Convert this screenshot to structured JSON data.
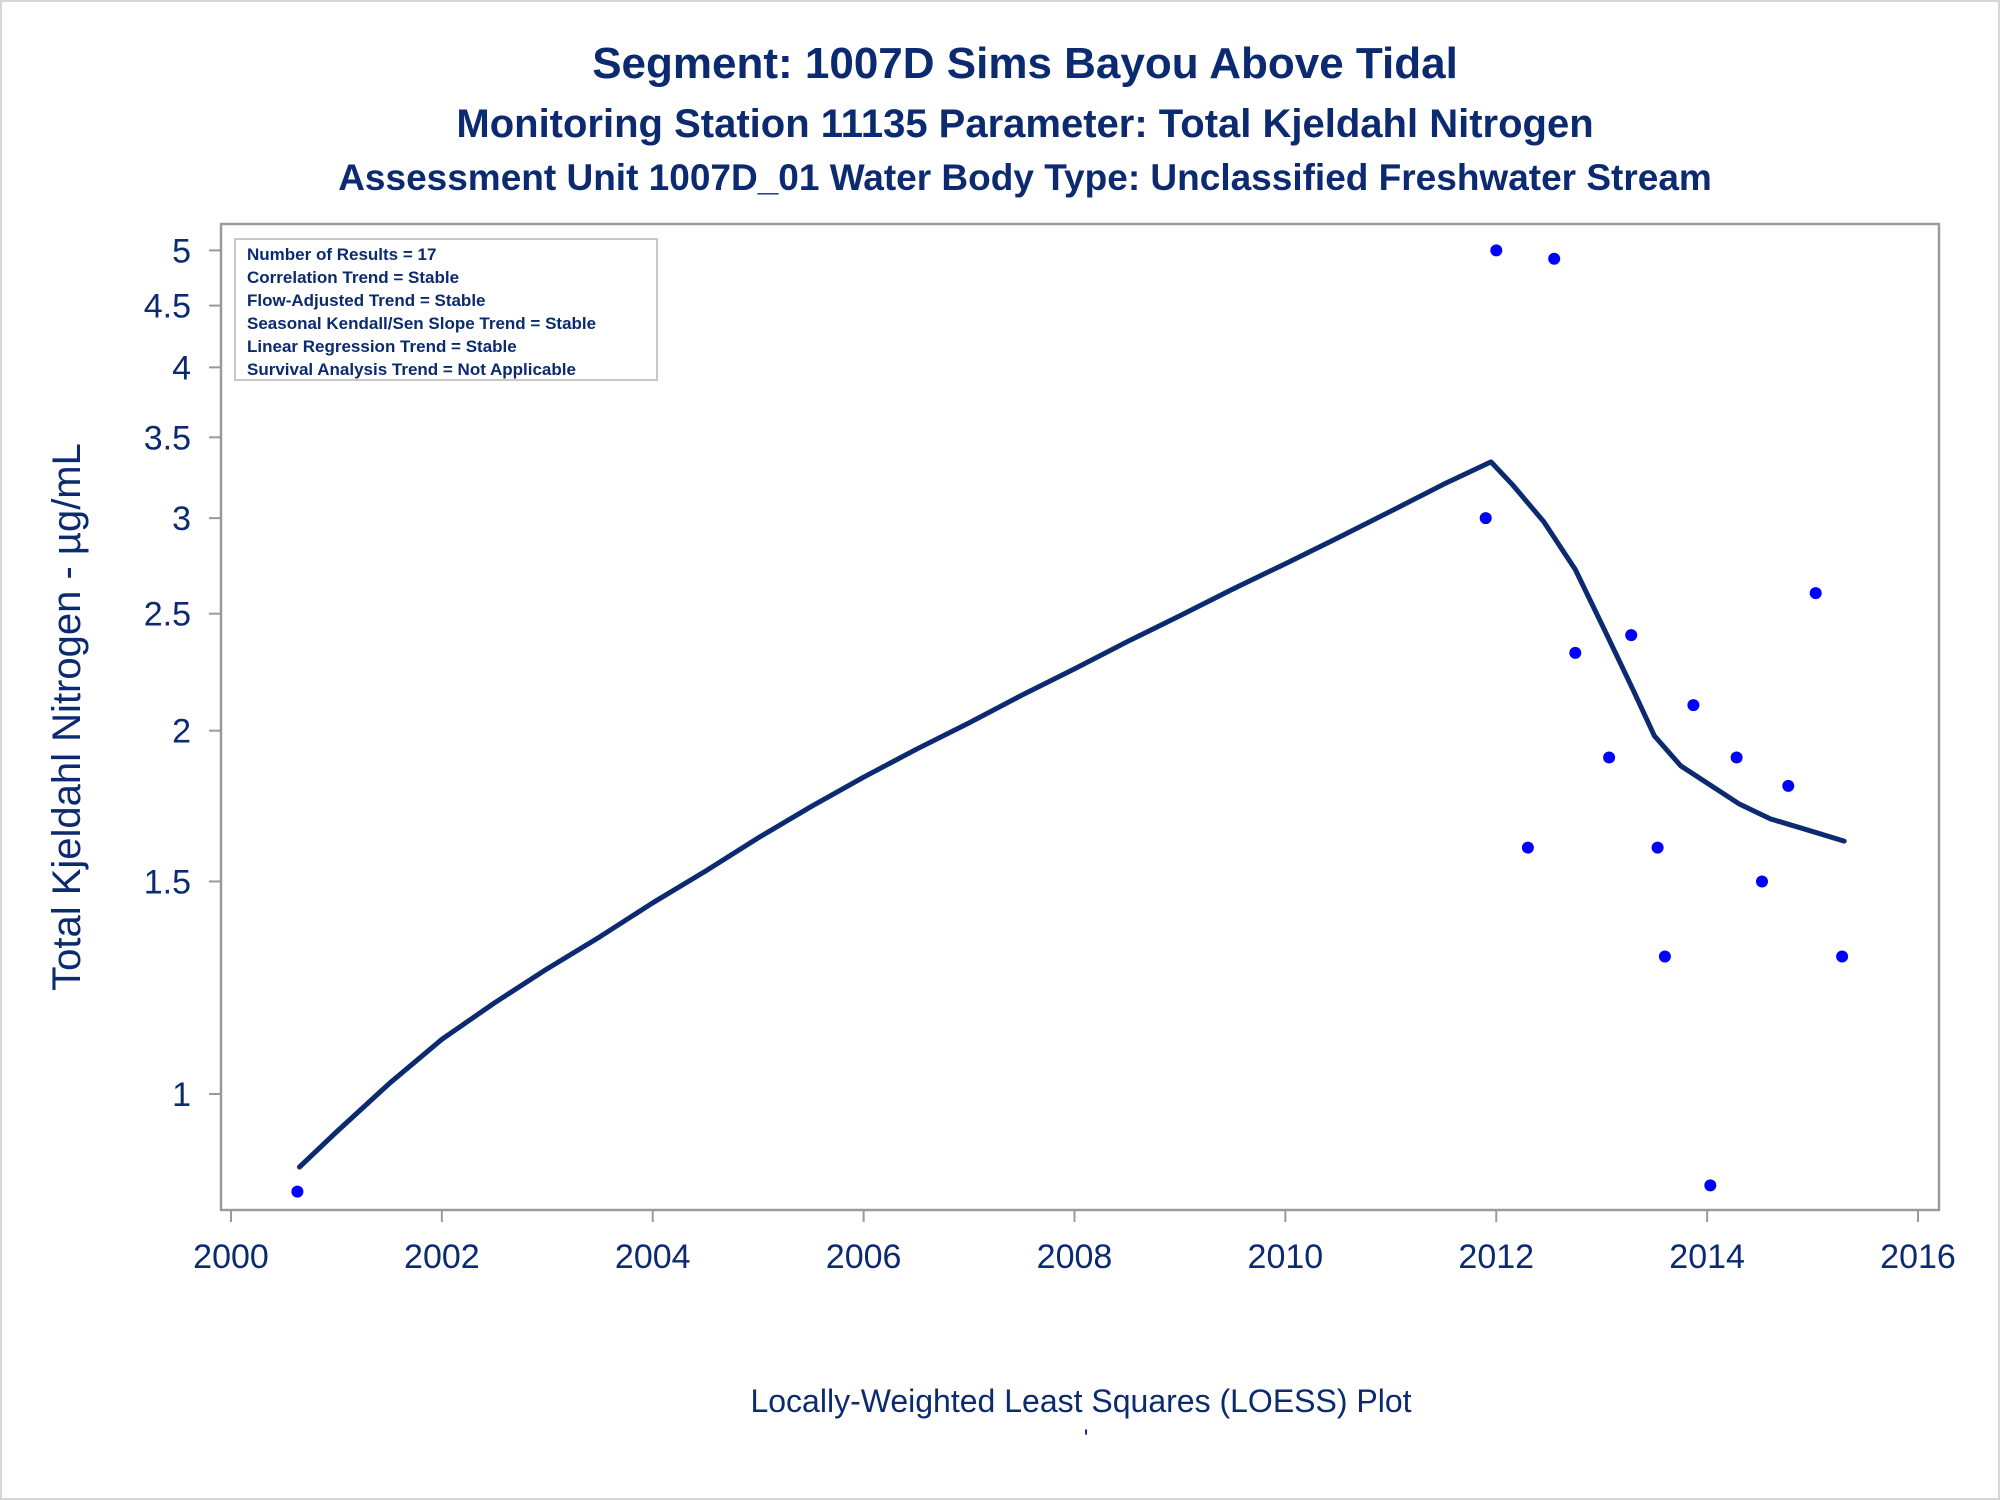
{
  "titles": {
    "line1": "Segment: 1007D  Sims Bayou Above Tidal",
    "line2": "Monitoring Station 11135 Parameter: Total Kjeldahl Nitrogen",
    "line3": "Assessment Unit 1007D_01   Water Body Type: Unclassified Freshwater Stream"
  },
  "footnote": "Locally-Weighted Least Squares (LOESS) Plot",
  "footnote_mark": "'",
  "stats_box": [
    "Number of Results = 17",
    "Correlation Trend = Stable",
    "Flow-Adjusted Trend = Stable",
    "Seasonal Kendall/Sen Slope Trend = Stable",
    "Linear Regression Trend = Stable",
    "Survival Analysis Trend = Not Applicable"
  ],
  "colors": {
    "text": "#0b2a6f",
    "line": "#0b2a6f",
    "points": "#0000ff",
    "axis": "#9a9a9a"
  },
  "chart_data": {
    "type": "scatter",
    "title": "Segment: 1007D  Sims Bayou Above Tidal",
    "xlabel": "",
    "ylabel": "Total Kjeldahl Nitrogen -  µg/mL",
    "yscale": "log",
    "xlim": [
      2000,
      2016
    ],
    "ylim": [
      0.82,
      5.1
    ],
    "xticks": [
      "2000",
      "2002",
      "2004",
      "2006",
      "2008",
      "2010",
      "2012",
      "2014",
      "2016"
    ],
    "yticks": [
      "1",
      "1.5",
      "2",
      "2.5",
      "3",
      "3.5",
      "4",
      "4.5",
      "5"
    ],
    "grid": false,
    "series": [
      {
        "type": "scatter",
        "x": [
          2000.63,
          2011.9,
          2012.0,
          2012.3,
          2012.55,
          2012.75,
          2013.07,
          2013.28,
          2013.53,
          2013.6,
          2013.87,
          2014.03,
          2014.28,
          2014.52,
          2014.77,
          2015.03,
          2015.28
        ],
        "y": [
          0.83,
          3.0,
          5.0,
          1.6,
          4.92,
          2.32,
          1.9,
          2.4,
          1.6,
          1.3,
          2.1,
          0.84,
          1.9,
          1.5,
          1.8,
          2.6,
          1.3
        ]
      },
      {
        "type": "line",
        "x": [
          2000.65,
          2001.0,
          2001.5,
          2002.0,
          2002.5,
          2003.0,
          2003.5,
          2004.0,
          2004.5,
          2005.0,
          2005.5,
          2006.0,
          2006.5,
          2007.0,
          2007.5,
          2008.0,
          2008.5,
          2009.0,
          2009.5,
          2010.0,
          2010.5,
          2011.0,
          2011.5,
          2011.95,
          2012.15,
          2012.45,
          2012.75,
          2013.05,
          2013.3,
          2013.5,
          2013.75,
          2014.0,
          2014.3,
          2014.6,
          2014.9,
          2015.3
        ],
        "y": [
          0.87,
          0.93,
          1.02,
          1.11,
          1.19,
          1.27,
          1.35,
          1.44,
          1.53,
          1.63,
          1.73,
          1.83,
          1.93,
          2.03,
          2.14,
          2.25,
          2.37,
          2.49,
          2.62,
          2.75,
          2.89,
          3.04,
          3.2,
          3.34,
          3.2,
          2.98,
          2.72,
          2.4,
          2.16,
          1.98,
          1.87,
          1.81,
          1.74,
          1.69,
          1.66,
          1.62
        ]
      }
    ]
  }
}
